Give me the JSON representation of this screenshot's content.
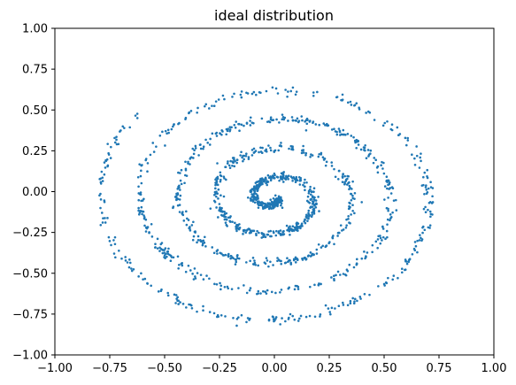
{
  "chart_data": {
    "type": "scatter",
    "title": "ideal distribution",
    "xlabel": "",
    "ylabel": "",
    "xlim": [
      -1.0,
      1.0
    ],
    "ylim": [
      -1.0,
      1.0
    ],
    "grid": false,
    "legend": "none",
    "x_ticks": [
      "−1.00",
      "−0.75",
      "−0.50",
      "−0.25",
      "0.00",
      "0.25",
      "0.50",
      "0.75",
      "1.00"
    ],
    "y_ticks": [
      "−1.00",
      "−0.75",
      "−0.50",
      "−0.25",
      "0.00",
      "0.25",
      "0.50",
      "0.75",
      "1.00"
    ],
    "marker_color": "#1f77b4",
    "series": [
      {
        "shape": "archimedean spiral",
        "approx_points": 1500,
        "spiral_center": [
          0.0,
          -0.04
        ],
        "radius_per_radian": 0.028,
        "theta_start_rad": 0.3,
        "theta_end_rad": 29.0,
        "noise_sd": 0.012
      }
    ]
  }
}
